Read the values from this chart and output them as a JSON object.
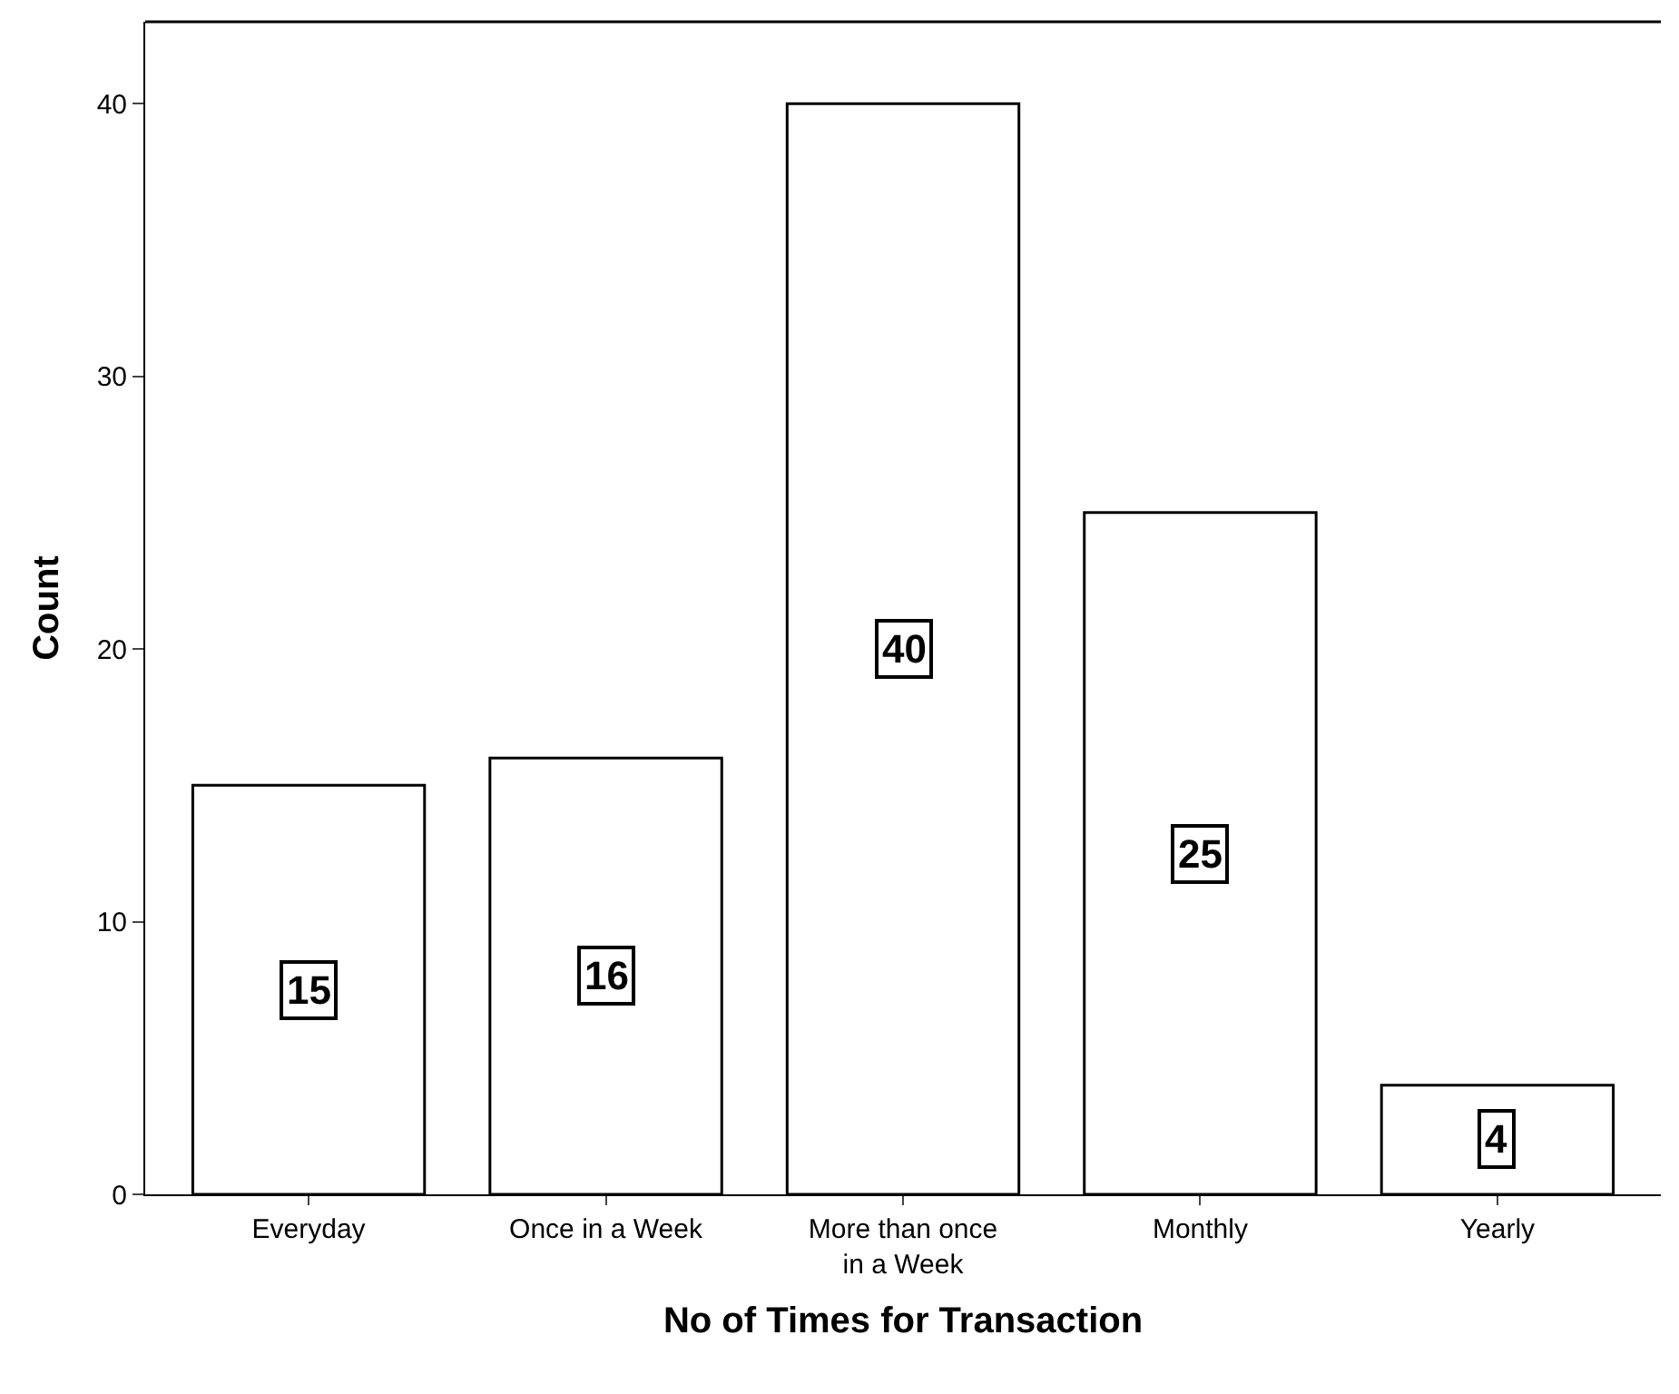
{
  "chart_data": {
    "type": "bar",
    "xlabel": "No of Times for Transaction",
    "ylabel": "Count",
    "categories": [
      "Everyday",
      "Once in a Week",
      "More than once in a Week",
      "Monthly",
      "Yearly"
    ],
    "values": [
      15,
      16,
      40,
      25,
      4
    ],
    "color": "#ffffff",
    "ylim": [
      0,
      43
    ],
    "yticks": [
      0,
      10,
      20,
      30,
      40
    ],
    "legend": false,
    "data_labels": true
  }
}
